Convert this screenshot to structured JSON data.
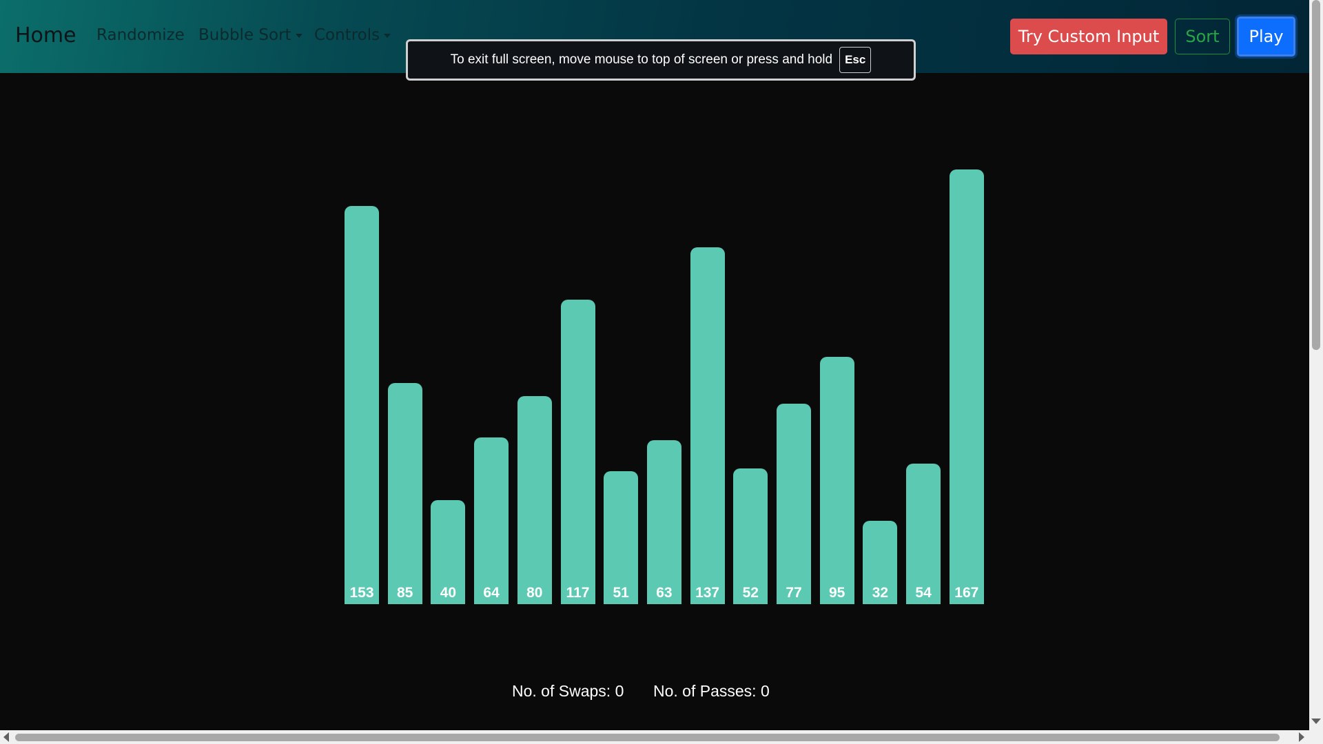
{
  "navbar": {
    "brand": "Home",
    "links": {
      "randomize": "Randomize",
      "bubble_sort": "Bubble Sort",
      "controls": "Controls"
    },
    "buttons": {
      "custom": "Try Custom Input",
      "sort": "Sort",
      "play": "Play"
    }
  },
  "fullscreen_toast": {
    "message": "To exit full screen, move mouse to top of screen or press and hold",
    "key": "Esc"
  },
  "stats": {
    "swaps": "No. of Swaps: 0",
    "passes": "No. of Passes: 0"
  },
  "colors": {
    "bar": "#5cc9b3",
    "accent_red": "#dc4c4c",
    "accent_green": "#28a745",
    "accent_blue": "#0d6efd"
  },
  "chart_data": {
    "type": "bar",
    "values": [
      153,
      85,
      40,
      64,
      80,
      117,
      51,
      63,
      137,
      52,
      77,
      95,
      32,
      54,
      167
    ]
  }
}
